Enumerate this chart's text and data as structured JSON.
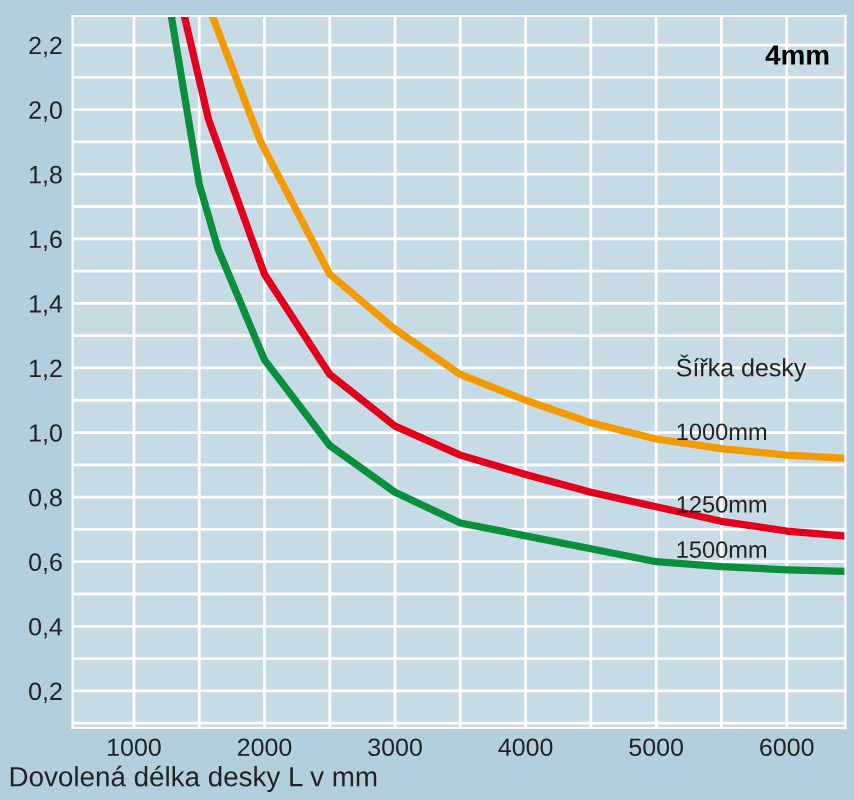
{
  "chart_data": {
    "type": "line",
    "title": "4mm",
    "xlabel": "Dovolená délka desky L v mm",
    "legend_title": "Šířka desky",
    "xlim": [
      530,
      6450
    ],
    "ylim": [
      0.085,
      2.29
    ],
    "xticks": [
      1000,
      {
        "value": 1500,
        "label": null
      },
      2000,
      {
        "value": 2500,
        "label": null
      },
      3000,
      {
        "value": 3500,
        "label": null
      },
      4000,
      {
        "value": 4500,
        "label": null
      },
      5000,
      {
        "value": 5500,
        "label": null
      },
      6000
    ],
    "yticks": [
      {
        "value": 0.1,
        "label": null
      },
      {
        "value": 0.2,
        "label": "0,2"
      },
      {
        "value": 0.3,
        "label": null
      },
      {
        "value": 0.4,
        "label": "0,4"
      },
      {
        "value": 0.5,
        "label": null
      },
      {
        "value": 0.6,
        "label": "0,6"
      },
      {
        "value": 0.7,
        "label": null
      },
      {
        "value": 0.8,
        "label": "0,8"
      },
      {
        "value": 0.9,
        "label": null
      },
      {
        "value": 1.0,
        "label": "1,0"
      },
      {
        "value": 1.1,
        "label": null
      },
      {
        "value": 1.2,
        "label": "1,2"
      },
      {
        "value": 1.3,
        "label": null
      },
      {
        "value": 1.4,
        "label": "1,4"
      },
      {
        "value": 1.5,
        "label": null
      },
      {
        "value": 1.6,
        "label": "1,6"
      },
      {
        "value": 1.7,
        "label": null
      },
      {
        "value": 1.8,
        "label": "1,8"
      },
      {
        "value": 1.9,
        "label": null
      },
      {
        "value": 2.0,
        "label": "2,0"
      },
      {
        "value": 2.1,
        "label": null
      },
      {
        "value": 2.2,
        "label": "2,2"
      }
    ],
    "grid": true,
    "legend": false,
    "marker": "none",
    "line_style": "solid",
    "series": [
      {
        "name": "1000mm",
        "color": "#f39a00",
        "x": [
          1600,
          1971,
          2500,
          3000,
          3500,
          4000,
          4500,
          5000,
          5500,
          6000,
          6440
        ],
        "values": [
          2.29,
          1.9,
          1.49,
          1.32,
          1.18,
          1.1,
          1.03,
          0.98,
          0.95,
          0.93,
          0.92
        ]
      },
      {
        "name": "1250mm",
        "color": "#e2001a",
        "x": [
          1386,
          1571,
          2000,
          2500,
          3000,
          3500,
          4000,
          4500,
          5000,
          5500,
          6000,
          6440
        ],
        "values": [
          2.29,
          1.97,
          1.49,
          1.18,
          1.02,
          0.93,
          0.87,
          0.815,
          0.77,
          0.725,
          0.695,
          0.68
        ]
      },
      {
        "name": "1500mm",
        "color": "#0a8f3c",
        "x": [
          1286,
          1500,
          1643,
          2000,
          2500,
          3000,
          3500,
          4000,
          4500,
          5000,
          5500,
          6000,
          6440
        ],
        "values": [
          2.29,
          1.77,
          1.57,
          1.225,
          0.96,
          0.815,
          0.72,
          0.68,
          0.64,
          0.6,
          0.585,
          0.575,
          0.57
        ]
      }
    ]
  }
}
